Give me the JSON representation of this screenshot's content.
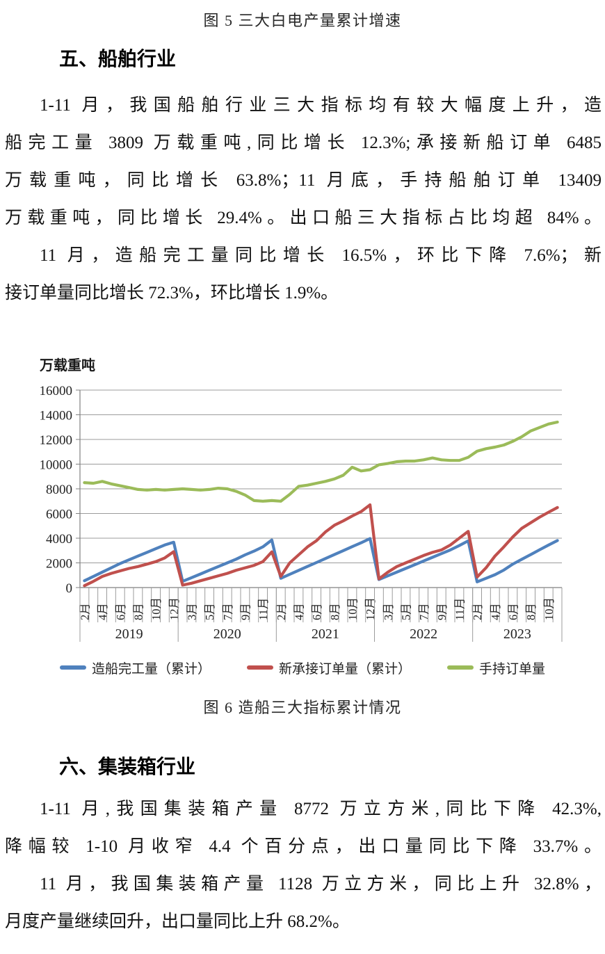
{
  "figure5_caption": "图 5 三大白电产量累计增速",
  "section_ship": {
    "heading": "五、船舶行业",
    "para1": [
      "1-11 月，我国船舶行业三大指标均有较大幅度上升，造",
      "船完工量 3809 万载重吨,同比增长 12.3%;承接新船订单 6485",
      "万载重吨，同比增长 63.8%；11 月底，手持船舶订单 13409",
      "万载重吨，同比增长 29.4%。出口船三大指标占比均超 84%。"
    ],
    "para2": [
      "11 月，造船完工量同比增长 16.5%，环比下降 7.6%；新",
      "接订单量同比增长 72.3%，环比增长 1.9%。"
    ]
  },
  "chart_data": {
    "type": "line",
    "unit_label": "万载重吨",
    "ylim": [
      0,
      16000
    ],
    "y_step": 2000,
    "grid": true,
    "legend_position": "bottom",
    "x_label_every": 2,
    "groups": [
      {
        "year": "2019",
        "months": [
          "2月",
          "3月",
          "4月",
          "5月",
          "6月",
          "7月",
          "8月",
          "9月",
          "10月",
          "11月",
          "12月"
        ]
      },
      {
        "year": "2020",
        "months": [
          "2月",
          "3月",
          "4月",
          "5月",
          "6月",
          "7月",
          "8月",
          "9月",
          "10月",
          "11月",
          "12月"
        ]
      },
      {
        "year": "2021",
        "months": [
          "2月",
          "3月",
          "4月",
          "5月",
          "6月",
          "7月",
          "8月",
          "9月",
          "10月",
          "11月",
          "12月"
        ]
      },
      {
        "year": "2022",
        "months": [
          "2月",
          "3月",
          "4月",
          "5月",
          "6月",
          "7月",
          "8月",
          "9月",
          "10月",
          "11月",
          "12月"
        ]
      },
      {
        "year": "2023",
        "months": [
          "2月",
          "3月",
          "4月",
          "5月",
          "6月",
          "7月",
          "8月",
          "9月",
          "10月",
          "11月"
        ]
      }
    ],
    "series": [
      {
        "name": "造船完工量（累计）",
        "color": "#4F81BD",
        "values": [
          550,
          900,
          1250,
          1600,
          1950,
          2250,
          2550,
          2850,
          3150,
          3450,
          3672,
          500,
          800,
          1100,
          1400,
          1700,
          2000,
          2300,
          2650,
          2950,
          3300,
          3853,
          750,
          1070,
          1390,
          1710,
          2030,
          2350,
          2670,
          2990,
          3310,
          3630,
          3970,
          650,
          950,
          1250,
          1550,
          1850,
          2150,
          2450,
          2750,
          3050,
          3400,
          3786,
          460,
          750,
          1040,
          1420,
          1900,
          2290,
          2670,
          3060,
          3440,
          3809
        ]
      },
      {
        "name": "新承接订单量（累计）",
        "color": "#C0504D",
        "values": [
          150,
          500,
          900,
          1150,
          1350,
          1550,
          1700,
          1900,
          2100,
          2400,
          2907,
          200,
          350,
          550,
          750,
          950,
          1150,
          1400,
          1600,
          1800,
          2100,
          2893,
          900,
          2000,
          2650,
          3300,
          3800,
          4500,
          5050,
          5400,
          5800,
          6150,
          6707,
          700,
          1250,
          1700,
          2000,
          2300,
          2600,
          2850,
          3050,
          3450,
          4000,
          4552,
          850,
          1600,
          2550,
          3300,
          4100,
          4800,
          5250,
          5700,
          6100,
          6485
        ]
      },
      {
        "name": "手持订单量",
        "color": "#9BBB59",
        "values": [
          8500,
          8450,
          8600,
          8400,
          8250,
          8100,
          7950,
          7900,
          7950,
          7900,
          7950,
          8000,
          7950,
          7900,
          7950,
          8050,
          8000,
          7800,
          7500,
          7050,
          7000,
          7050,
          7000,
          7550,
          8200,
          8300,
          8450,
          8600,
          8800,
          9100,
          9750,
          9450,
          9550,
          9950,
          10050,
          10200,
          10250,
          10250,
          10350,
          10500,
          10350,
          10300,
          10300,
          10550,
          11050,
          11250,
          11380,
          11550,
          11850,
          12220,
          12690,
          12970,
          13250,
          13409
        ]
      }
    ],
    "caption": "图 6 造船三大指标累计情况"
  },
  "section_container": {
    "heading": "六、集装箱行业",
    "para1": [
      "1-11 月,我国集装箱产量 8772 万立方米,同比下降 42.3%,",
      "降幅较 1-10 月收窄 4.4 个百分点，出口量同比下降 33.7%。"
    ],
    "para2": [
      "11 月，我国集装箱产量 1128 万立方米，同比上升 32.8%，",
      "月度产量继续回升，出口量同比上升 68.2%。"
    ]
  }
}
